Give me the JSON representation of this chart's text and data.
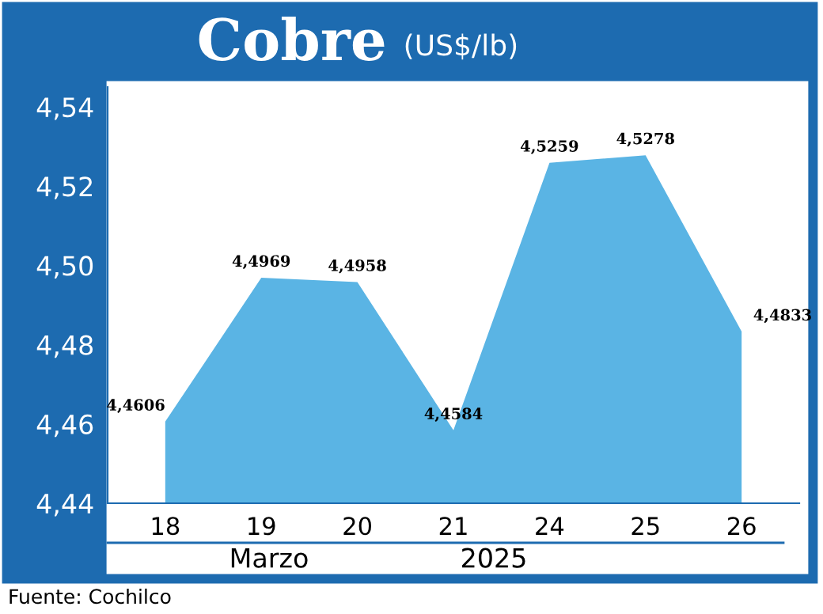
{
  "chart_data": {
    "type": "area",
    "title": "Cobre",
    "subtitle": "(US$/lb)",
    "categories": [
      "18",
      "19",
      "20",
      "21",
      "24",
      "25",
      "26"
    ],
    "values": [
      4.4606,
      4.4969,
      4.4958,
      4.4584,
      4.5259,
      4.5278,
      4.4833
    ],
    "value_labels": [
      "4,4606",
      "4,4969",
      "4,4958",
      "4,4584",
      "4,5259",
      "4,5278",
      "4,4833"
    ],
    "color": "#5ab4e4",
    "ylim": [
      4.44,
      4.545
    ],
    "yticks": [
      {
        "value": 4.44,
        "label": "4,44"
      },
      {
        "value": 4.46,
        "label": "4,46"
      },
      {
        "value": 4.48,
        "label": "4,48"
      },
      {
        "value": 4.5,
        "label": "4,50"
      },
      {
        "value": 4.52,
        "label": "4,52"
      },
      {
        "value": 4.54,
        "label": "4,54"
      }
    ],
    "grid": false,
    "legend": false,
    "annotations": [
      "Marzo",
      "2025",
      "Fuente: Cochilco"
    ]
  }
}
